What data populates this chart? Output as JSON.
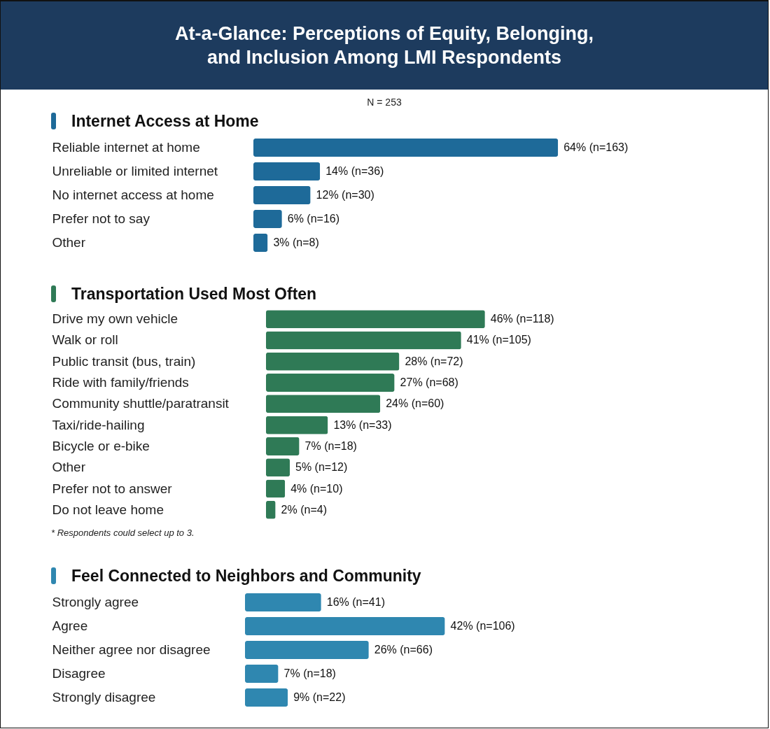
{
  "chart_data": [
    {
      "type": "other",
      "title": "At-a-Glance: Perceptions of Equity, Belonging, and Inclusion Among LMI Respondents",
      "subtitle": "N = 253"
    },
    {
      "type": "bar",
      "orientation": "horizontal",
      "title": "Internet Access at Home",
      "categories": [
        "Reliable internet at home",
        "Unreliable or limited internet",
        "No internet access at home",
        "Prefer not to say",
        "Other"
      ],
      "values": [
        64,
        14,
        12,
        6,
        3
      ],
      "value_labels": [
        "64% (n=163)",
        "14% (n=36)",
        "12% (n=30)",
        "6% (n=16)",
        "3% (n=8)"
      ],
      "color": "#1e6a99",
      "tick_labels": "y"
    },
    {
      "type": "bar",
      "orientation": "horizontal",
      "title": "Transportation Used Most Often",
      "categories": [
        "Drive my own vehicle",
        "Walk or roll",
        "Public transit (bus, train)",
        "Ride with family/friends",
        "Community shuttle/paratransit",
        "Taxi/ride-hailing",
        "Bicycle or e-bike",
        "Other",
        "Prefer not to answer",
        "Do not leave home"
      ],
      "values": [
        46,
        41,
        28,
        27,
        24,
        13,
        7,
        5,
        4,
        2
      ],
      "value_labels": [
        "46% (n=118)",
        "41% (n=105)",
        "28% (n=72)",
        "27% (n=68)",
        "24% (n=60)",
        "13% (n=33)",
        "7% (n=18)",
        "5% (n=12)",
        "4% (n=10)",
        "2% (n=4)"
      ],
      "color": "#2f7a56",
      "tick_labels": "y",
      "annotations": [
        "* Respondents could select up to 3."
      ]
    },
    {
      "type": "bar",
      "orientation": "horizontal",
      "title": "Feel Connected to Neighbors and Community",
      "categories": [
        "Strongly agree",
        "Agree",
        "Neither agree nor disagree",
        "Disagree",
        "Strongly disagree"
      ],
      "values": [
        16,
        42,
        26,
        7,
        9
      ],
      "value_labels": [
        "16% (n=41)",
        "42% (n=106)",
        "26% (n=66)",
        "7% (n=18)",
        "9% (n=22)"
      ],
      "color": "#2f87b0",
      "tick_labels": "y"
    }
  ]
}
